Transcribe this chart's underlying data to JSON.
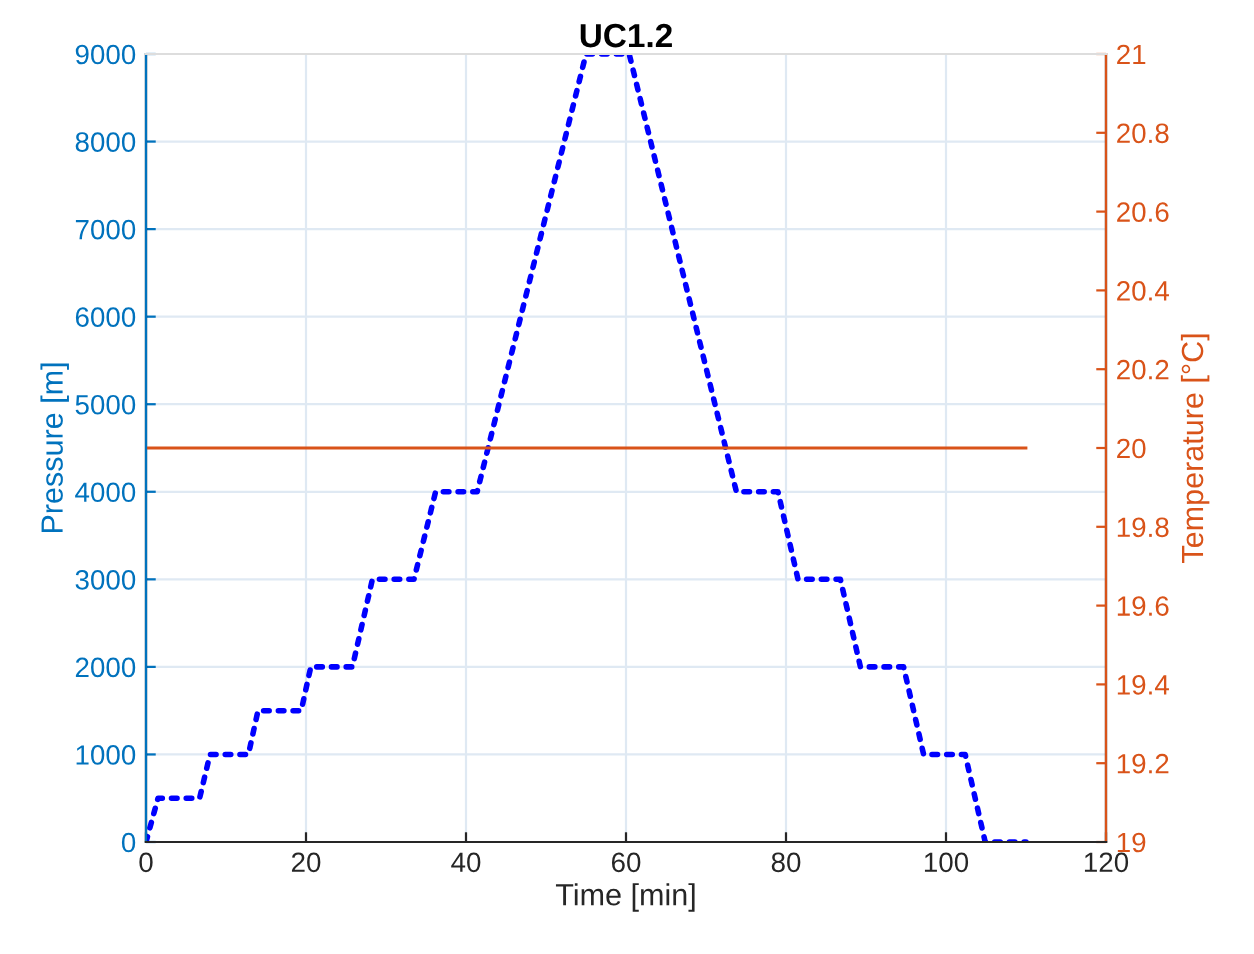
{
  "chart_data": {
    "type": "line",
    "title": "UC1.2",
    "xlabel": "Time [min]",
    "ylabel": "Pressure [m]",
    "y2label": "Temperature [°C]",
    "series": [
      {
        "color": "#0000ff",
        "line_style": "dotted",
        "x": [
          0,
          1.5,
          6.7,
          8,
          12.8,
          14,
          19.4,
          20.6,
          25.8,
          28.3,
          33.5,
          36.2,
          41.4,
          55,
          60.4,
          73.8,
          79,
          81.5,
          86.8,
          89.3,
          94.7,
          97.2,
          102.4,
          104.9,
          110
        ],
        "values": [
          0,
          500,
          500,
          1000,
          1000,
          1500,
          1500,
          2000,
          2000,
          3000,
          3000,
          4000,
          4000,
          9000,
          9000,
          4000,
          4000,
          3000,
          3000,
          2000,
          2000,
          1000,
          1000,
          0,
          0
        ]
      },
      {
        "color": "#d95319",
        "axis": "y2",
        "line_style": "solid",
        "x": [
          0,
          110
        ],
        "values": [
          20,
          20
        ]
      }
    ],
    "xlim": [
      0,
      120
    ],
    "xticks": [
      0,
      20,
      40,
      60,
      80,
      100,
      120
    ],
    "ylim": [
      0,
      9000
    ],
    "yticks": [
      0,
      1000,
      2000,
      3000,
      4000,
      5000,
      6000,
      7000,
      8000,
      9000
    ],
    "y2lim": [
      19,
      21
    ],
    "y2ticks": [
      19,
      19.2,
      19.4,
      19.6,
      19.8,
      20,
      20.2,
      20.4,
      20.6,
      20.8,
      21
    ],
    "grid": true,
    "legend": false
  }
}
